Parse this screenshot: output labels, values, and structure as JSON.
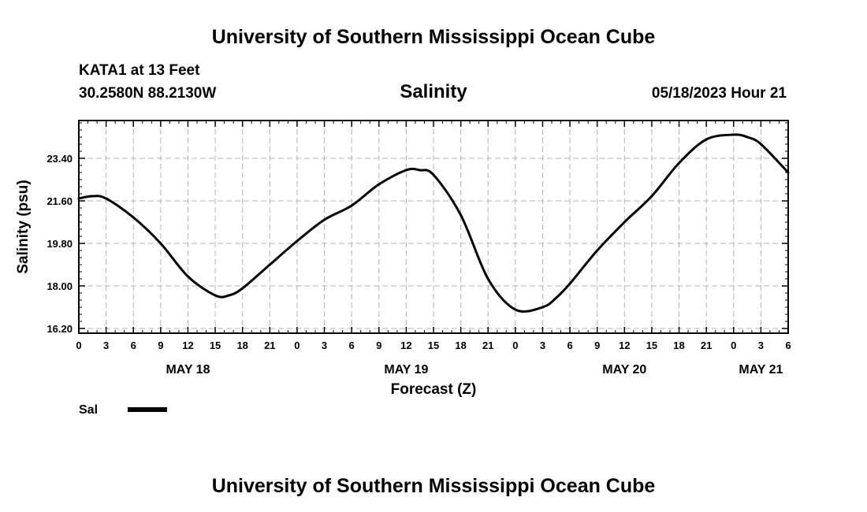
{
  "header": {
    "top_title": "University of Southern Mississippi Ocean Cube",
    "bottom_title": "University of Southern Mississippi Ocean Cube",
    "station": "KATA1 at 13 Feet",
    "location": "30.2580N  88.2130W",
    "timestamp": "05/18/2023 Hour 21"
  },
  "legend": {
    "label": "Sal"
  },
  "chart_data": {
    "type": "line",
    "title": "Salinity",
    "xlabel": "Forecast (Z)",
    "ylabel": "Salinity (psu)",
    "x_unit": "hours from 00Z May 18",
    "xlim": [
      0,
      78
    ],
    "ylim": [
      16.0,
      25.0
    ],
    "y_ticks": [
      16.2,
      18.0,
      19.8,
      21.6,
      23.4
    ],
    "y_tick_labels": [
      "16.20",
      "18.00",
      "19.80",
      "21.60",
      "23.40"
    ],
    "x_ticks": [
      0,
      3,
      6,
      9,
      12,
      15,
      18,
      21,
      24,
      27,
      30,
      33,
      36,
      39,
      42,
      45,
      48,
      51,
      54,
      57,
      60,
      63,
      66,
      69,
      72,
      75,
      78
    ],
    "x_tick_labels": [
      "0",
      "3",
      "6",
      "9",
      "12",
      "15",
      "18",
      "21",
      "0",
      "3",
      "6",
      "9",
      "12",
      "15",
      "18",
      "21",
      "0",
      "3",
      "6",
      "9",
      "12",
      "15",
      "18",
      "21",
      "0",
      "3",
      "6"
    ],
    "day_labels": [
      {
        "x": 12,
        "label": "MAY 18"
      },
      {
        "x": 36,
        "label": "MAY 19"
      },
      {
        "x": 60,
        "label": "MAY 20"
      },
      {
        "x": 75,
        "label": "MAY 21"
      }
    ],
    "grid": true,
    "series": [
      {
        "name": "Sal",
        "x": [
          0,
          1.5,
          3,
          6,
          9,
          12,
          15,
          16.5,
          18,
          21,
          24,
          27,
          30,
          33,
          36,
          37.5,
          39,
          42,
          45,
          48,
          51,
          52.5,
          54,
          57,
          60,
          63,
          66,
          69,
          72,
          73.5,
          75,
          78
        ],
        "y": [
          21.7,
          21.8,
          21.7,
          20.9,
          19.8,
          18.4,
          17.6,
          17.6,
          17.9,
          18.9,
          19.9,
          20.8,
          21.4,
          22.3,
          22.9,
          22.9,
          22.7,
          21.0,
          18.3,
          17.0,
          17.1,
          17.5,
          18.1,
          19.5,
          20.7,
          21.8,
          23.2,
          24.2,
          24.4,
          24.3,
          24.0,
          22.8
        ]
      }
    ]
  }
}
